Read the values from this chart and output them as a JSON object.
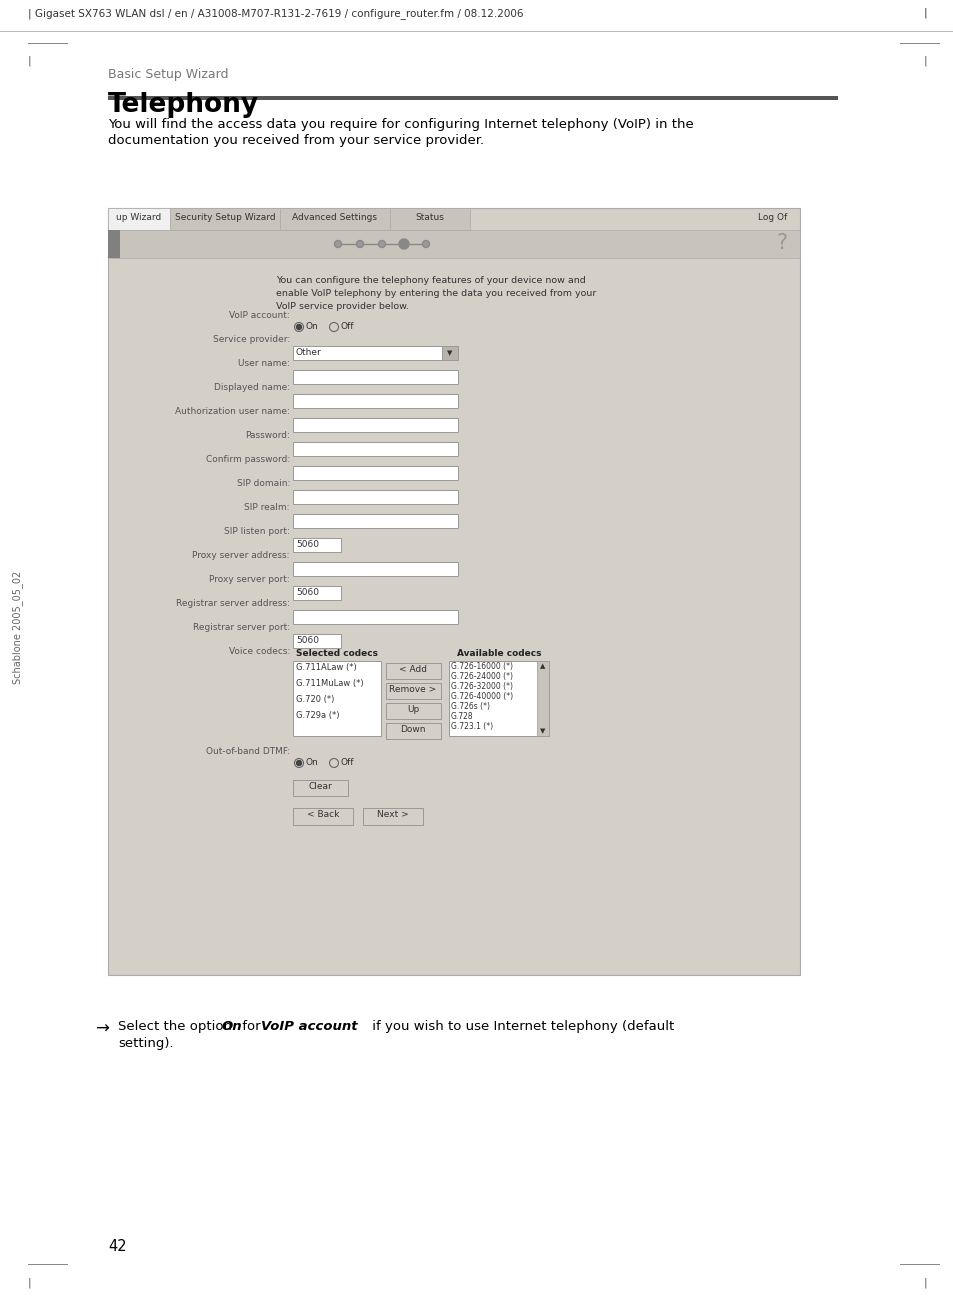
{
  "page_header": "| Gigaset SX763 WLAN dsl / en / A31008-M707-R131-2-7619 / configure_router.fm / 08.12.2006",
  "section_label": "Basic Setup Wizard",
  "title": "Telephony",
  "intro_line1": "You will find the access data you require for configuring Internet telephony (VoIP) in the",
  "intro_line2": "documentation you received from your service provider.",
  "sidebar_text": "Schablone 2005_05_02",
  "tab_labels": [
    "up Wizard",
    "Security Setup Wizard",
    "Advanced Settings",
    "Status"
  ],
  "tab_log_off": "Log Of",
  "ui_intro_line1": "You can configure the telephony features of your device now and",
  "ui_intro_line2": "enable VoIP telephony by entering the data you received from your",
  "ui_intro_line3": "VoIP service provider below.",
  "form_fields": [
    {
      "label": "VoIP account:",
      "type": "radio",
      "value": ""
    },
    {
      "label": "Service provider:",
      "type": "dropdown",
      "value": "Other"
    },
    {
      "label": "User name:",
      "type": "text",
      "value": ""
    },
    {
      "label": "Displayed name:",
      "type": "text",
      "value": ""
    },
    {
      "label": "Authorization user name:",
      "type": "text",
      "value": ""
    },
    {
      "label": "Password:",
      "type": "text",
      "value": ""
    },
    {
      "label": "Confirm password:",
      "type": "text",
      "value": ""
    },
    {
      "label": "SIP domain:",
      "type": "text",
      "value": ""
    },
    {
      "label": "SIP realm:",
      "type": "text",
      "value": ""
    },
    {
      "label": "SIP listen port:",
      "type": "port",
      "value": "5060"
    },
    {
      "label": "Proxy server address:",
      "type": "text",
      "value": ""
    },
    {
      "label": "Proxy server port:",
      "type": "port",
      "value": "5060"
    },
    {
      "label": "Registrar server address:",
      "type": "text",
      "value": ""
    },
    {
      "label": "Registrar server port:",
      "type": "port",
      "value": "5060"
    }
  ],
  "voice_codecs_label": "Voice codecs:",
  "selected_codecs_title": "Selected codecs",
  "selected_codecs": [
    "G.711ALaw (*)",
    "G.711MuLaw (*)",
    "G.720 (*)",
    "G.729a (*)"
  ],
  "available_codecs_title": "Available codecs",
  "available_codecs": [
    "G.726-16000 (*)",
    "G.726-24000 (*)",
    "G.726-32000 (*)",
    "G.726-40000 (*)",
    "G.726s (*)",
    "G.728",
    "G.723.1 (*)"
  ],
  "codec_buttons": [
    "< Add",
    "Remove >",
    "Up",
    "Down"
  ],
  "dtmf_label": "Out-of-band DTMF:",
  "page_number": "42",
  "bg_color": "#ffffff",
  "ui_bg_color": "#d4d0c8",
  "field_bg": "#ffffff",
  "label_color": "#555555",
  "text_color": "#000000",
  "dark_bar_color": "#555555",
  "btn_color": "#d4d0c8",
  "tab_active_bg": "#f0f0f0",
  "tab_inactive_bg": "#c8c4bc"
}
